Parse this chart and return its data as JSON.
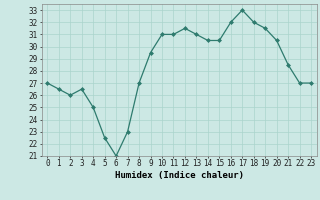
{
  "x": [
    0,
    1,
    2,
    3,
    4,
    5,
    6,
    7,
    8,
    9,
    10,
    11,
    12,
    13,
    14,
    15,
    16,
    17,
    18,
    19,
    20,
    21,
    22,
    23
  ],
  "y": [
    27,
    26.5,
    26,
    26.5,
    25,
    22.5,
    21,
    23,
    27,
    29.5,
    31,
    31,
    31.5,
    31,
    30.5,
    30.5,
    32,
    33,
    32,
    31.5,
    30.5,
    28.5,
    27,
    27
  ],
  "xlabel": "Humidex (Indice chaleur)",
  "xlim": [
    -0.5,
    23.5
  ],
  "ylim": [
    21,
    33.5
  ],
  "yticks": [
    21,
    22,
    23,
    24,
    25,
    26,
    27,
    28,
    29,
    30,
    31,
    32,
    33
  ],
  "xticks": [
    0,
    1,
    2,
    3,
    4,
    5,
    6,
    7,
    8,
    9,
    10,
    11,
    12,
    13,
    14,
    15,
    16,
    17,
    18,
    19,
    20,
    21,
    22,
    23
  ],
  "line_color": "#2e7b6e",
  "marker_color": "#2e7b6e",
  "bg_color": "#cce8e4",
  "grid_color": "#aad4cc",
  "label_fontsize": 6.5,
  "tick_fontsize": 5.5
}
